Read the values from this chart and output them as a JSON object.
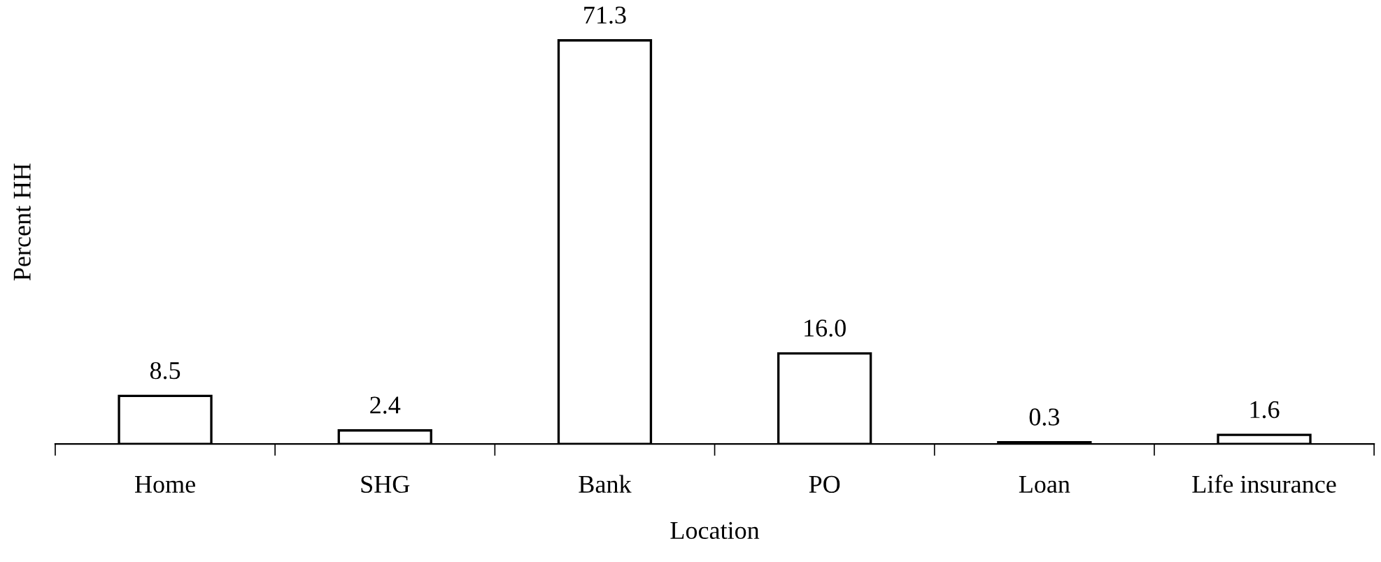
{
  "chart_data": {
    "type": "bar",
    "xlabel": "Location",
    "ylabel": "Percent HH",
    "categories": [
      "Home",
      "SHG",
      "Bank",
      "PO",
      "Loan",
      "Life insurance"
    ],
    "values": [
      8.5,
      2.4,
      71.3,
      16.0,
      0.3,
      1.6
    ],
    "value_labels": [
      "8.5",
      "2.4",
      "71.3",
      "16.0",
      "0.3",
      "1.6"
    ],
    "color": "#ffffff",
    "grid": false,
    "legend": false
  }
}
